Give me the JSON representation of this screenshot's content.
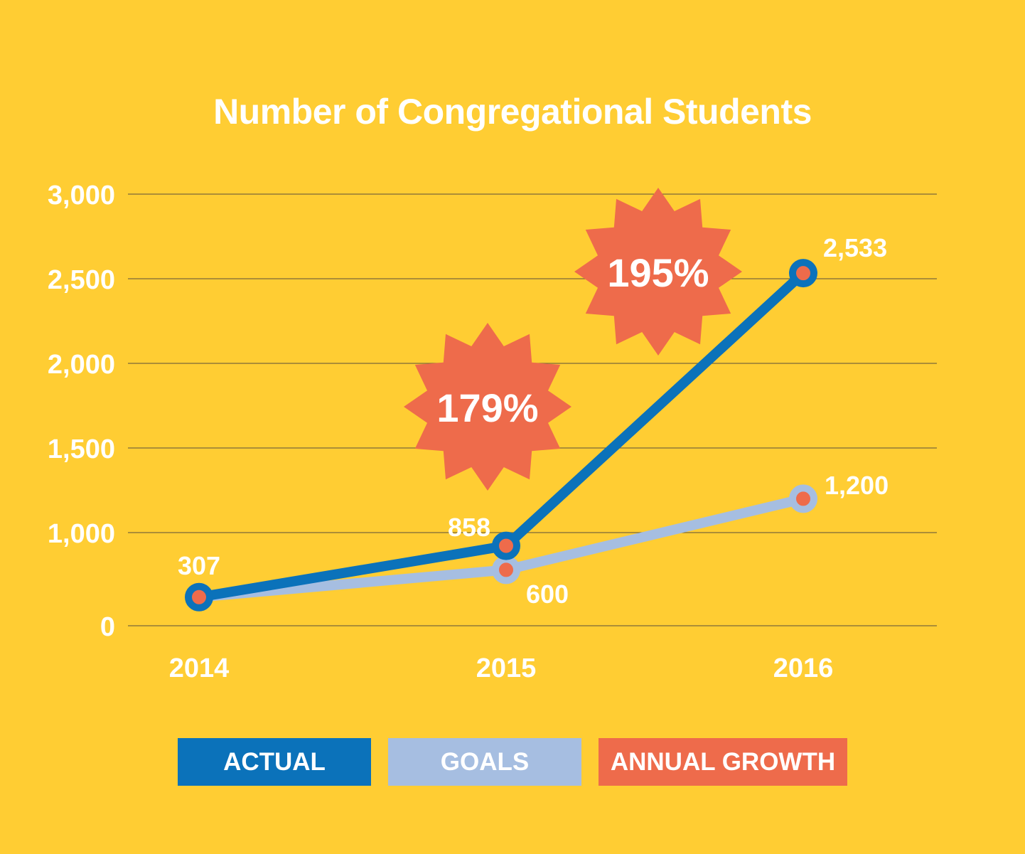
{
  "chart_data": {
    "type": "line",
    "title": "Number of Congregational Students",
    "categories": [
      "2014",
      "2015",
      "2016"
    ],
    "ylim": [
      0,
      3000
    ],
    "yticks": [
      0,
      1000,
      1500,
      2000,
      2500,
      3000
    ],
    "ytick_labels": [
      "0",
      "1,000",
      "1,500",
      "2,000",
      "2,500",
      "3,000"
    ],
    "grid": true,
    "series": [
      {
        "name": "ACTUAL",
        "values": [
          307,
          858,
          2533
        ],
        "labels": [
          "307",
          "858",
          "2,533"
        ],
        "color": "#0B72BA"
      },
      {
        "name": "GOALS",
        "values": [
          307,
          600,
          1200
        ],
        "labels": [
          "",
          "600",
          "1,200"
        ],
        "color": "#A6BEE1"
      }
    ],
    "growth": [
      {
        "label": "179%"
      },
      {
        "label": "195%"
      }
    ],
    "colors": {
      "background": "#FFCD33",
      "grid": "#7A6A3A",
      "text": "#ffffff",
      "marker_dot": "#EE6B4B"
    }
  },
  "legend": [
    {
      "label": "ACTUAL",
      "color": "#0B72BA"
    },
    {
      "label": "GOALS",
      "color": "#A6BEE1"
    },
    {
      "label": "ANNUAL GROWTH",
      "color": "#EE6B4B"
    }
  ]
}
